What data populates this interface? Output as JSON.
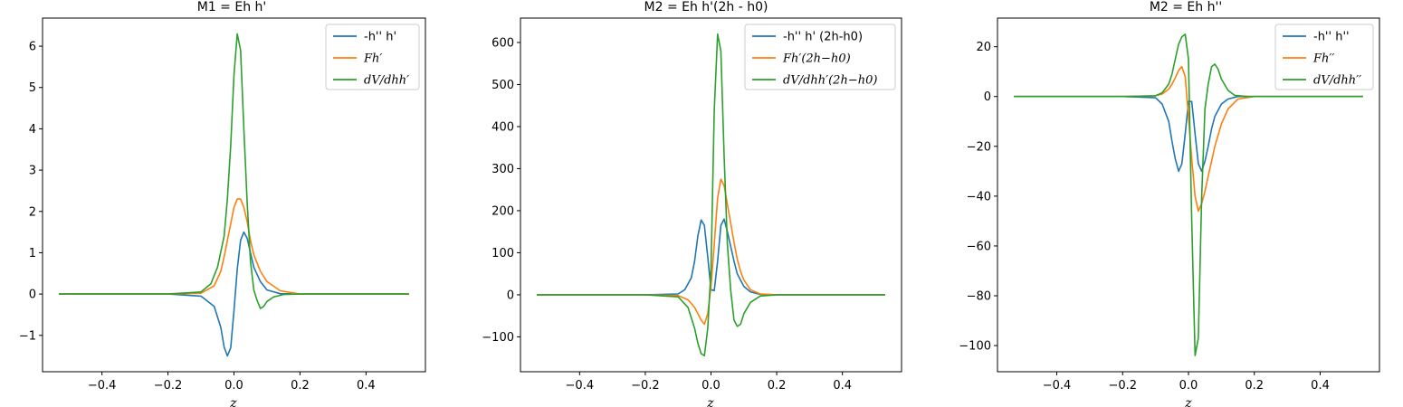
{
  "colors": {
    "blue": "#1f77b4",
    "orange": "#ff7f0e",
    "green": "#2ca02c"
  },
  "chart_data": [
    {
      "type": "line",
      "title": "M1 = Eh h'",
      "xlabel": "z",
      "ylabel": "",
      "xlim": [
        -0.58,
        0.58
      ],
      "ylim": [
        -1.88,
        6.68
      ],
      "xticks": [
        -0.4,
        -0.2,
        0.0,
        0.2,
        0.4
      ],
      "xtick_labels": [
        "−0.4",
        "−0.2",
        "0.0",
        "0.2",
        "0.4"
      ],
      "yticks": [
        -1,
        0,
        1,
        2,
        3,
        4,
        5,
        6
      ],
      "ytick_labels": [
        "−1",
        "0",
        "1",
        "2",
        "3",
        "4",
        "5",
        "6"
      ],
      "legend": "top-right",
      "series": [
        {
          "name": "-h'' h'",
          "color": "#1f77b4",
          "x": [
            -0.53,
            -0.2,
            -0.1,
            -0.06,
            -0.04,
            -0.03,
            -0.02,
            -0.01,
            0.0,
            0.01,
            0.02,
            0.03,
            0.04,
            0.05,
            0.06,
            0.08,
            0.1,
            0.14,
            0.2,
            0.53
          ],
          "y": [
            0,
            0,
            -0.05,
            -0.3,
            -0.8,
            -1.28,
            -1.5,
            -1.3,
            -0.4,
            0.6,
            1.3,
            1.5,
            1.35,
            1.0,
            0.65,
            0.3,
            0.1,
            0.01,
            0,
            0
          ]
        },
        {
          "name": "Fh′",
          "color": "#ff7f0e",
          "x": [
            -0.53,
            -0.2,
            -0.1,
            -0.06,
            -0.04,
            -0.03,
            -0.02,
            -0.01,
            0.0,
            0.01,
            0.02,
            0.03,
            0.04,
            0.05,
            0.06,
            0.08,
            0.1,
            0.14,
            0.2,
            0.53
          ],
          "y": [
            0,
            0,
            0.02,
            0.2,
            0.55,
            0.9,
            1.3,
            1.7,
            2.1,
            2.3,
            2.3,
            2.1,
            1.75,
            1.3,
            0.95,
            0.55,
            0.3,
            0.08,
            0,
            0
          ]
        },
        {
          "name": "dV/dhh′",
          "color": "#2ca02c",
          "x": [
            -0.53,
            -0.2,
            -0.1,
            -0.07,
            -0.05,
            -0.03,
            -0.02,
            -0.01,
            0.0,
            0.01,
            0.02,
            0.03,
            0.04,
            0.05,
            0.06,
            0.07,
            0.08,
            0.09,
            0.1,
            0.12,
            0.15,
            0.2,
            0.53
          ],
          "y": [
            0,
            0,
            0.05,
            0.25,
            0.65,
            1.4,
            2.3,
            3.6,
            5.3,
            6.3,
            5.9,
            4.0,
            2.2,
            0.8,
            0.1,
            -0.15,
            -0.35,
            -0.3,
            -0.18,
            -0.07,
            -0.01,
            0,
            0
          ]
        }
      ]
    },
    {
      "type": "line",
      "title": "M2 = Eh h'(2h - h0)",
      "xlabel": "z",
      "ylabel": "",
      "xlim": [
        -0.58,
        0.58
      ],
      "ylim": [
        -183,
        658
      ],
      "xticks": [
        -0.4,
        -0.2,
        0.0,
        0.2,
        0.4
      ],
      "xtick_labels": [
        "−0.4",
        "−0.2",
        "0.0",
        "0.2",
        "0.4"
      ],
      "yticks": [
        -100,
        0,
        100,
        200,
        300,
        400,
        500,
        600
      ],
      "ytick_labels": [
        "−100",
        "0",
        "100",
        "200",
        "300",
        "400",
        "500",
        "600"
      ],
      "legend": "top-right",
      "series": [
        {
          "name": "-h'' h' (2h-h0)",
          "color": "#1f77b4",
          "x": [
            -0.53,
            -0.2,
            -0.1,
            -0.08,
            -0.06,
            -0.05,
            -0.04,
            -0.03,
            -0.02,
            -0.01,
            0.0,
            0.01,
            0.02,
            0.03,
            0.04,
            0.05,
            0.06,
            0.07,
            0.08,
            0.1,
            0.12,
            0.15,
            0.2,
            0.53
          ],
          "y": [
            0,
            0,
            2,
            12,
            40,
            80,
            140,
            178,
            165,
            90,
            12,
            10,
            80,
            165,
            180,
            150,
            115,
            80,
            50,
            20,
            7,
            1,
            0,
            0
          ]
        },
        {
          "name": "Fh′(2h−h0)",
          "color": "#ff7f0e",
          "x": [
            -0.53,
            -0.2,
            -0.1,
            -0.07,
            -0.05,
            -0.03,
            -0.02,
            -0.01,
            0.0,
            0.01,
            0.02,
            0.03,
            0.04,
            0.05,
            0.06,
            0.07,
            0.08,
            0.09,
            0.1,
            0.12,
            0.15,
            0.2,
            0.53
          ],
          "y": [
            0,
            0,
            -2,
            -12,
            -30,
            -60,
            -70,
            -45,
            20,
            120,
            230,
            275,
            260,
            215,
            170,
            125,
            85,
            55,
            35,
            12,
            2,
            0,
            0
          ]
        },
        {
          "name": "dV/dhh′(2h−h0)",
          "color": "#2ca02c",
          "x": [
            -0.53,
            -0.2,
            -0.1,
            -0.07,
            -0.05,
            -0.04,
            -0.03,
            -0.02,
            -0.01,
            0.0,
            0.01,
            0.02,
            0.03,
            0.04,
            0.05,
            0.06,
            0.07,
            0.08,
            0.09,
            0.1,
            0.12,
            0.15,
            0.2,
            0.53
          ],
          "y": [
            0,
            0,
            -5,
            -30,
            -80,
            -115,
            -140,
            -145,
            -80,
            60,
            440,
            620,
            580,
            330,
            120,
            10,
            -60,
            -75,
            -70,
            -45,
            -18,
            -3,
            0,
            0
          ]
        }
      ]
    },
    {
      "type": "line",
      "title": "M2 = Eh h''",
      "xlabel": "z",
      "ylabel": "",
      "xlim": [
        -0.58,
        0.58
      ],
      "ylim": [
        -110.5,
        31.5
      ],
      "xticks": [
        -0.4,
        -0.2,
        0.0,
        0.2,
        0.4
      ],
      "xtick_labels": [
        "−0.4",
        "−0.2",
        "0.0",
        "0.2",
        "0.4"
      ],
      "yticks": [
        -100,
        -80,
        -60,
        -40,
        -20,
        0,
        20
      ],
      "ytick_labels": [
        "−100",
        "−80",
        "−60",
        "−40",
        "−20",
        "0",
        "20"
      ],
      "legend": "top-right",
      "series": [
        {
          "name": "-h'' h''",
          "color": "#1f77b4",
          "x": [
            -0.53,
            -0.2,
            -0.1,
            -0.08,
            -0.06,
            -0.05,
            -0.04,
            -0.03,
            -0.02,
            -0.01,
            0.0,
            0.01,
            0.02,
            0.03,
            0.04,
            0.05,
            0.06,
            0.07,
            0.08,
            0.1,
            0.12,
            0.15,
            0.2,
            0.53
          ],
          "y": [
            0,
            0,
            -0.5,
            -3,
            -10,
            -18,
            -25,
            -30,
            -27,
            -15,
            -2,
            -2,
            -15,
            -27,
            -30,
            -26,
            -20,
            -13,
            -8,
            -3,
            -1,
            0,
            0,
            0
          ]
        },
        {
          "name": "Fh′′",
          "color": "#ff7f0e",
          "x": [
            -0.53,
            -0.2,
            -0.1,
            -0.08,
            -0.06,
            -0.05,
            -0.04,
            -0.03,
            -0.02,
            -0.01,
            0.0,
            0.01,
            0.02,
            0.03,
            0.04,
            0.05,
            0.06,
            0.07,
            0.08,
            0.1,
            0.12,
            0.15,
            0.2,
            0.53
          ],
          "y": [
            0,
            0,
            0.3,
            1,
            3,
            5,
            7.5,
            10.5,
            12,
            8,
            -8,
            -25,
            -40,
            -46,
            -43,
            -38,
            -32,
            -26,
            -20,
            -11,
            -5,
            -1,
            0,
            0
          ]
        },
        {
          "name": "dV/dhh′′",
          "color": "#2ca02c",
          "x": [
            -0.53,
            -0.2,
            -0.1,
            -0.08,
            -0.06,
            -0.05,
            -0.04,
            -0.03,
            -0.02,
            -0.01,
            0.0,
            0.01,
            0.02,
            0.03,
            0.04,
            0.05,
            0.06,
            0.07,
            0.08,
            0.09,
            0.1,
            0.12,
            0.14,
            0.18,
            0.53
          ],
          "y": [
            0,
            0,
            0.3,
            1.5,
            5,
            9,
            15,
            21,
            24,
            25,
            15,
            -50,
            -104,
            -97,
            -40,
            -5,
            5,
            12,
            13,
            11,
            7,
            2.5,
            0.5,
            0,
            0
          ]
        }
      ]
    }
  ]
}
